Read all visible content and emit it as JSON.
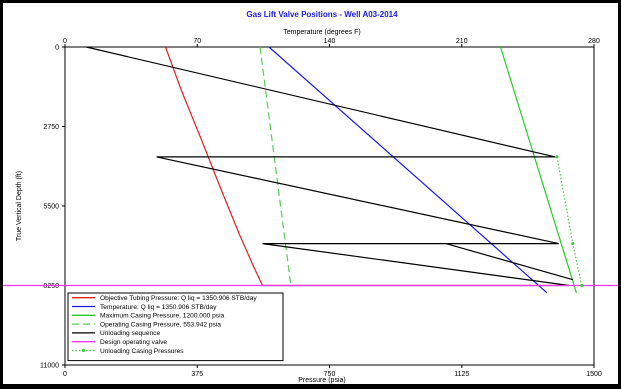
{
  "chart_data": {
    "type": "line",
    "title": "Gas Lift Valve Positions - Well A03-2014",
    "xlabel": "Pressure (psia)",
    "x2label": "Temperature (degrees F)",
    "ylabel": "True Vertical Depth (ft)",
    "xlim": [
      0,
      1500
    ],
    "x2lim": [
      0,
      280
    ],
    "ylim": [
      0,
      11000
    ],
    "y_inverted": true,
    "x_ticks": [
      "0",
      "375",
      "750",
      "1125",
      "1500"
    ],
    "x2_ticks": [
      "0",
      "70",
      "140",
      "210",
      "280"
    ],
    "y_ticks": [
      "0",
      "2750",
      "5500",
      "8250",
      "11000"
    ],
    "grid": false,
    "legend_position": "bottom-left",
    "colors": {
      "tubing": "#e02020",
      "temperature": "#1a1aee",
      "max_casing": "#22cc22",
      "operating_casing": "#55cc55",
      "unloading": "#000000",
      "design_valve": "#ff33ff",
      "unloading_casing": "#44cc44"
    },
    "series": [
      {
        "name": "Objective Tubing Pressure: Q liq = 1350.906 STB/day",
        "key": "tubing",
        "style": "solid",
        "axis": "x",
        "points": [
          [
            285,
            0
          ],
          [
            330,
            1500
          ],
          [
            390,
            3300
          ],
          [
            445,
            5000
          ],
          [
            495,
            6500
          ],
          [
            535,
            7600
          ],
          [
            560,
            8250
          ]
        ]
      },
      {
        "name": "Temperature: Q liq = 1350.906 STB/day",
        "key": "temperature",
        "style": "solid",
        "axis": "x2",
        "points": [
          [
            108,
            0
          ],
          [
            255,
            8500
          ]
        ]
      },
      {
        "name": "Maximum Casing Pressure, 1200.000 psia",
        "key": "max_casing",
        "style": "solid",
        "axis": "x",
        "points": [
          [
            1235,
            0
          ],
          [
            1450,
            8500
          ]
        ]
      },
      {
        "name": "Operating Casing Pressure, 553.942 psia",
        "key": "operating_casing",
        "style": "dashed",
        "axis": "x",
        "points": [
          [
            553,
            0
          ],
          [
            640,
            8200
          ]
        ]
      },
      {
        "name": "Unloading sequence",
        "key": "unloading",
        "style": "solid",
        "axis": "x",
        "points": [
          [
            60,
            0
          ],
          [
            1390,
            3800
          ],
          [
            260,
            3800
          ],
          [
            1400,
            6800
          ],
          [
            560,
            6800
          ],
          [
            1430,
            8250
          ],
          [
            560,
            8250
          ]
        ],
        "extra_segments": [
          [
            [
              1080,
              6800
            ],
            [
              1440,
              8050
            ]
          ]
        ]
      },
      {
        "name": "Design operating valve",
        "key": "design_valve",
        "style": "solid",
        "axis": "x",
        "points": [
          [
            0,
            8250
          ],
          [
            1500,
            8250
          ]
        ]
      },
      {
        "name": "Unloading Casing Pressures",
        "key": "unloading_casing",
        "style": "dotted-marker",
        "axis": "x",
        "points": [
          [
            1395,
            3800
          ],
          [
            1440,
            6800
          ],
          [
            1465,
            8250
          ]
        ]
      }
    ]
  }
}
